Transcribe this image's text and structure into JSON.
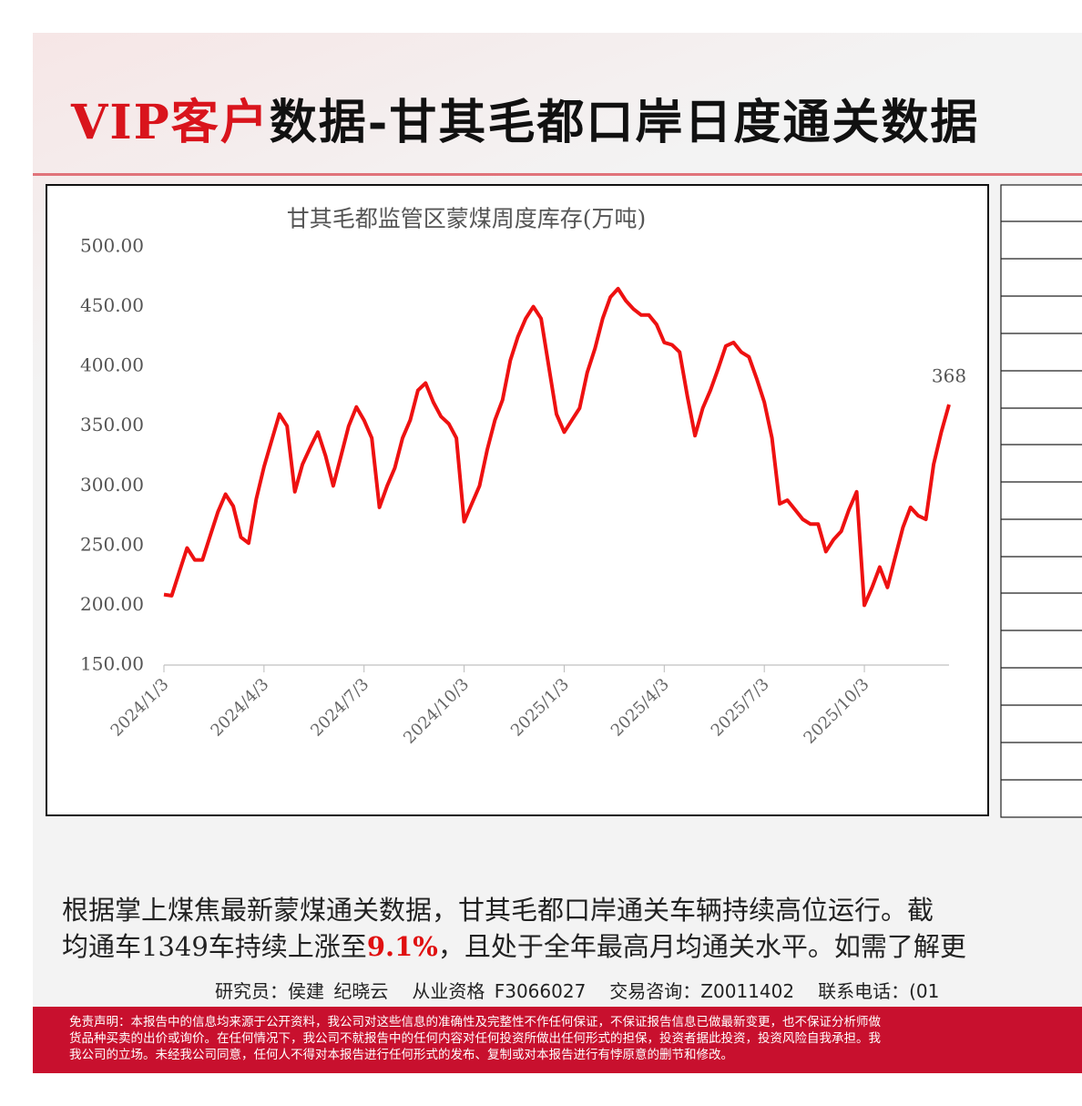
{
  "header": {
    "title_red": "VIP客户",
    "title_black": "数据-甘其毛都口岸日度通关数据"
  },
  "chart_data": {
    "type": "line",
    "title": "甘其毛都监管区蒙煤周度库存(万吨)",
    "color": "#ee1111",
    "categories": [
      "2024/1/3",
      null,
      null,
      null,
      null,
      null,
      null,
      null,
      null,
      null,
      null,
      null,
      null,
      "2024/4/3",
      null,
      null,
      null,
      null,
      null,
      null,
      null,
      null,
      null,
      null,
      null,
      null,
      "2024/7/3",
      null,
      null,
      null,
      null,
      null,
      null,
      null,
      null,
      null,
      null,
      null,
      null,
      "2024/10/3",
      null,
      null,
      null,
      null,
      null,
      null,
      null,
      null,
      null,
      null,
      null,
      null,
      "2025/1/3",
      null,
      null,
      null,
      null,
      null,
      null,
      null,
      null,
      null,
      null,
      null,
      null,
      "2025/4/3",
      null,
      null,
      null,
      null,
      null,
      null,
      null,
      null,
      null,
      null,
      null,
      null,
      "2025/7/3",
      null,
      null,
      null,
      null,
      null,
      null,
      null,
      null,
      null,
      null,
      null,
      null,
      "2025/10/3",
      null,
      null,
      null,
      null,
      null,
      null,
      null,
      null,
      null,
      null,
      null
    ],
    "values": [
      209,
      208,
      228,
      248,
      238,
      238,
      258,
      278,
      293,
      283,
      257,
      252,
      289,
      316,
      338,
      360,
      350,
      295,
      318,
      332,
      345,
      325,
      300,
      325,
      350,
      366,
      355,
      340,
      282,
      300,
      315,
      340,
      355,
      380,
      386,
      370,
      358,
      352,
      340,
      270,
      285,
      300,
      330,
      355,
      372,
      405,
      425,
      440,
      450,
      440,
      400,
      360,
      345,
      355,
      365,
      395,
      415,
      440,
      458,
      465,
      455,
      448,
      443,
      443,
      435,
      420,
      418,
      412,
      375,
      342,
      365,
      380,
      398,
      417,
      420,
      412,
      408,
      390,
      370,
      340,
      285,
      288,
      280,
      272,
      268,
      268,
      245,
      255,
      262,
      280,
      295,
      200,
      215,
      232,
      215,
      240,
      265,
      282,
      275,
      272,
      318,
      345,
      368
    ],
    "ylim": [
      150,
      500
    ],
    "yticks": [
      {
        "value": 150,
        "label": "150.00"
      },
      {
        "value": 200,
        "label": "200.00"
      },
      {
        "value": 250,
        "label": "250.00"
      },
      {
        "value": 300,
        "label": "300.00"
      },
      {
        "value": 350,
        "label": "350.00"
      },
      {
        "value": 400,
        "label": "400.00"
      },
      {
        "value": 450,
        "label": "450.00"
      },
      {
        "value": 500,
        "label": "500.00"
      }
    ],
    "label_last": true
  },
  "paragraph": {
    "line1": "根据掌上煤焦最新蒙煤通关数据，甘其毛都口岸通关车辆持续高位运行。截",
    "line2_a": "均通车1349车持续上涨至",
    "line2_highlight": "9.1%",
    "line2_b": "，且处于全年最高月均通关水平。如需了解更"
  },
  "info": [
    "研究员：侯建 纪晓云",
    "从业资格 F3066027",
    "交易咨询：Z0011402",
    "联系电话：(01"
  ],
  "disclaimer": [
    "免责声明：本报告中的信息均来源于公开资料，我公司对这些信息的准确性及完整性不作任何保证，不保证报告信息已做最新变更，也不保证分析师做",
    "货品种买卖的出价或询价。在任何情况下，我公司不就报告中的任何内容对任何投资所做出任何形式的担保，投资者据此投资，投资风险自我承担。我",
    "我公司的立场。未经我公司同意，任何人不得对本报告进行任何形式的发布、复制或对本报告进行有悖原意的删节和修改。"
  ]
}
